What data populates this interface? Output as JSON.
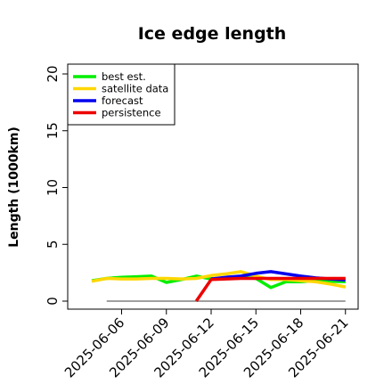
{
  "chart_data": {
    "type": "line",
    "title": "Ice edge length",
    "ylabel": "Length (1000km)",
    "xlabel": "",
    "ylim": [
      0,
      21
    ],
    "yticks": [
      "0",
      "5",
      "10",
      "15",
      "20"
    ],
    "x_ticks": [
      "2025-06-06",
      "2025-06-09",
      "2025-06-12",
      "2025-06-15",
      "2025-06-18",
      "2025-06-21"
    ],
    "highlight_tick": "2025-06-12",
    "highlight_color": "#228b22",
    "legend_position": "top-left",
    "baseline": {
      "y": 0,
      "x_from": "2025-06-05",
      "x_to": "2025-06-21",
      "color": "#808080"
    },
    "series": [
      {
        "name": "best est.",
        "color": "#00ee00",
        "points": [
          [
            "2025-06-04",
            1.8
          ],
          [
            "2025-06-05",
            2.0
          ],
          [
            "2025-06-06",
            2.1
          ],
          [
            "2025-06-07",
            2.15
          ],
          [
            "2025-06-08",
            2.2
          ],
          [
            "2025-06-09",
            1.65
          ],
          [
            "2025-06-10",
            1.9
          ],
          [
            "2025-06-11",
            2.2
          ],
          [
            "2025-06-12",
            1.95
          ],
          [
            "2025-06-13",
            2.0
          ],
          [
            "2025-06-14",
            2.1
          ],
          [
            "2025-06-15",
            2.0
          ],
          [
            "2025-06-16",
            1.2
          ],
          [
            "2025-06-17",
            1.7
          ],
          [
            "2025-06-18",
            1.7
          ],
          [
            "2025-06-19",
            1.8
          ],
          [
            "2025-06-20",
            1.75
          ],
          [
            "2025-06-21",
            1.7
          ]
        ]
      },
      {
        "name": "satellite data",
        "color": "#ffd700",
        "points": [
          [
            "2025-06-04",
            1.75
          ],
          [
            "2025-06-05",
            2.0
          ],
          [
            "2025-06-06",
            1.95
          ],
          [
            "2025-06-07",
            1.95
          ],
          [
            "2025-06-08",
            2.0
          ],
          [
            "2025-06-09",
            2.0
          ],
          [
            "2025-06-10",
            1.95
          ],
          [
            "2025-06-11",
            2.0
          ],
          [
            "2025-06-12",
            2.25
          ],
          [
            "2025-06-13",
            2.4
          ],
          [
            "2025-06-14",
            2.6
          ],
          [
            "2025-06-15",
            2.2
          ],
          [
            "2025-06-16",
            1.9
          ],
          [
            "2025-06-17",
            1.9
          ],
          [
            "2025-06-18",
            1.8
          ],
          [
            "2025-06-19",
            1.7
          ],
          [
            "2025-06-20",
            1.5
          ],
          [
            "2025-06-21",
            1.25
          ]
        ]
      },
      {
        "name": "forecast",
        "color": "#0000ee",
        "points": [
          [
            "2025-06-12",
            1.95
          ],
          [
            "2025-06-13",
            2.1
          ],
          [
            "2025-06-14",
            2.2
          ],
          [
            "2025-06-15",
            2.45
          ],
          [
            "2025-06-16",
            2.6
          ],
          [
            "2025-06-17",
            2.4
          ],
          [
            "2025-06-18",
            2.2
          ],
          [
            "2025-06-19",
            2.05
          ],
          [
            "2025-06-20",
            1.95
          ],
          [
            "2025-06-21",
            1.85
          ]
        ]
      },
      {
        "name": "persistence",
        "color": "#ee0000",
        "points": [
          [
            "2025-06-11",
            0.0
          ],
          [
            "2025-06-12",
            1.9
          ],
          [
            "2025-06-13",
            1.95
          ],
          [
            "2025-06-14",
            2.0
          ],
          [
            "2025-06-15",
            2.0
          ],
          [
            "2025-06-16",
            2.0
          ],
          [
            "2025-06-17",
            2.0
          ],
          [
            "2025-06-18",
            2.0
          ],
          [
            "2025-06-19",
            2.0
          ],
          [
            "2025-06-20",
            2.0
          ],
          [
            "2025-06-21",
            2.0
          ]
        ]
      }
    ]
  }
}
